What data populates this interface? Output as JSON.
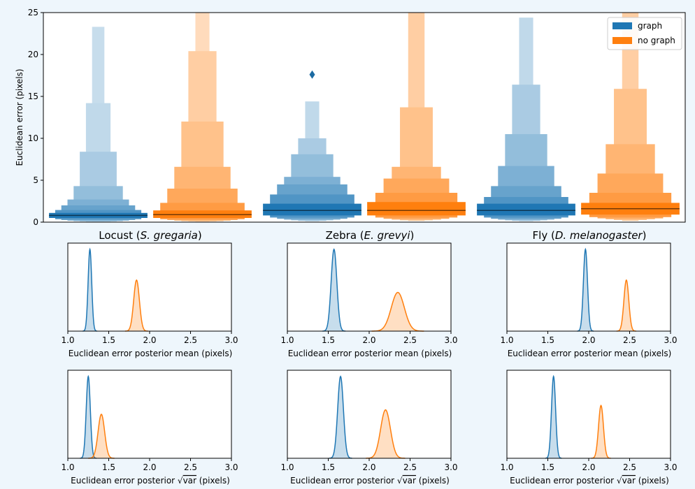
{
  "colors": {
    "graph": "#1f77b4",
    "no_graph": "#ff7f0e",
    "background": "#eef6fc"
  },
  "chart_data": [
    {
      "type": "boxen",
      "ylabel": "Euclidean error (pixels)",
      "ylim": [
        0,
        25
      ],
      "yticks": [
        0,
        5,
        10,
        15,
        20,
        25
      ],
      "legend": {
        "placement": "top-right",
        "entries": [
          "graph",
          "no graph"
        ]
      },
      "groups": [
        {
          "label_plain": "Locust (",
          "label_italic": "S. gregaria",
          "label_close": ")"
        },
        {
          "label_plain": "Zebra (",
          "label_italic": "E. grevyi",
          "label_close": ")"
        },
        {
          "label_plain": "Fly (",
          "label_italic": "D. melanogaster",
          "label_close": ")"
        }
      ],
      "series": [
        {
          "name": "graph",
          "boxes": [
            {
              "median": 0.8,
              "levels": [
                [
                  0.5,
                  1.1
                ],
                [
                  0.35,
                  1.45
                ],
                [
                  0.25,
                  2.0
                ],
                [
                  0.18,
                  2.7
                ],
                [
                  0.12,
                  4.3
                ],
                [
                  0.08,
                  8.4
                ],
                [
                  0.05,
                  14.2
                ],
                [
                  0.03,
                  23.3
                ]
              ],
              "outliers": []
            },
            {
              "median": 1.4,
              "levels": [
                [
                  0.8,
                  2.2
                ],
                [
                  0.55,
                  3.3
                ],
                [
                  0.4,
                  4.5
                ],
                [
                  0.3,
                  5.4
                ],
                [
                  0.22,
                  8.1
                ],
                [
                  0.15,
                  10.0
                ],
                [
                  0.1,
                  14.4
                ]
              ],
              "outliers": [
                17.6
              ]
            },
            {
              "median": 1.4,
              "levels": [
                [
                  0.8,
                  2.2
                ],
                [
                  0.55,
                  3.0
                ],
                [
                  0.4,
                  4.3
                ],
                [
                  0.3,
                  6.7
                ],
                [
                  0.22,
                  10.5
                ],
                [
                  0.15,
                  16.4
                ],
                [
                  0.1,
                  24.4
                ]
              ],
              "outliers": []
            }
          ]
        },
        {
          "name": "no graph",
          "boxes": [
            {
              "median": 0.9,
              "levels": [
                [
                  0.5,
                  1.4
                ],
                [
                  0.35,
                  2.3
                ],
                [
                  0.25,
                  4.0
                ],
                [
                  0.18,
                  6.6
                ],
                [
                  0.12,
                  12.0
                ],
                [
                  0.08,
                  20.4
                ],
                [
                  0.05,
                  25
                ]
              ],
              "outliers": []
            },
            {
              "median": 1.4,
              "levels": [
                [
                  0.8,
                  2.4
                ],
                [
                  0.55,
                  3.5
                ],
                [
                  0.4,
                  5.2
                ],
                [
                  0.3,
                  6.6
                ],
                [
                  0.22,
                  13.7
                ],
                [
                  0.15,
                  25
                ]
              ],
              "outliers": []
            },
            {
              "median": 1.6,
              "levels": [
                [
                  0.9,
                  2.3
                ],
                [
                  0.6,
                  3.5
                ],
                [
                  0.45,
                  5.8
                ],
                [
                  0.35,
                  9.3
                ],
                [
                  0.25,
                  15.9
                ],
                [
                  0.15,
                  25
                ]
              ],
              "outliers": []
            }
          ]
        }
      ]
    },
    {
      "type": "density",
      "row": "mean",
      "xlabel": "Euclidean error posterior mean (pixels)",
      "xlim": [
        1.0,
        3.0
      ],
      "xticks": [
        "1.0",
        "1.5",
        "2.0",
        "2.5",
        "3.0"
      ],
      "panels": [
        {
          "group": "Locust",
          "series": [
            {
              "name": "graph",
              "mean": 1.27,
              "sd": 0.022,
              "peak": 0.93
            },
            {
              "name": "no graph",
              "mean": 1.84,
              "sd": 0.035,
              "peak": 0.58
            }
          ]
        },
        {
          "group": "Zebra",
          "series": [
            {
              "name": "graph",
              "mean": 1.57,
              "sd": 0.035,
              "peak": 0.93
            },
            {
              "name": "no graph",
              "mean": 2.35,
              "sd": 0.08,
              "peak": 0.44
            }
          ]
        },
        {
          "group": "Fly",
          "series": [
            {
              "name": "graph",
              "mean": 1.96,
              "sd": 0.025,
              "peak": 0.93
            },
            {
              "name": "no graph",
              "mean": 2.46,
              "sd": 0.03,
              "peak": 0.58
            }
          ]
        }
      ]
    },
    {
      "type": "density",
      "row": "sqrtvar",
      "xlabel_prefix": "Euclidean error posterior ",
      "xlabel_sqrt": "√",
      "xlabel_var": "var",
      "xlabel_suffix": " (pixels)",
      "xlim": [
        1.0,
        3.0
      ],
      "xticks": [
        "1.0",
        "1.5",
        "2.0",
        "2.5",
        "3.0"
      ],
      "panels": [
        {
          "group": "Locust",
          "series": [
            {
              "name": "graph",
              "mean": 1.25,
              "sd": 0.025,
              "peak": 0.93
            },
            {
              "name": "no graph",
              "mean": 1.41,
              "sd": 0.04,
              "peak": 0.5
            }
          ]
        },
        {
          "group": "Zebra",
          "series": [
            {
              "name": "graph",
              "mean": 1.65,
              "sd": 0.035,
              "peak": 0.93
            },
            {
              "name": "no graph",
              "mean": 2.2,
              "sd": 0.06,
              "peak": 0.55
            }
          ]
        },
        {
          "group": "Fly",
          "series": [
            {
              "name": "graph",
              "mean": 1.57,
              "sd": 0.025,
              "peak": 0.93
            },
            {
              "name": "no graph",
              "mean": 2.15,
              "sd": 0.03,
              "peak": 0.6
            }
          ]
        }
      ]
    }
  ]
}
